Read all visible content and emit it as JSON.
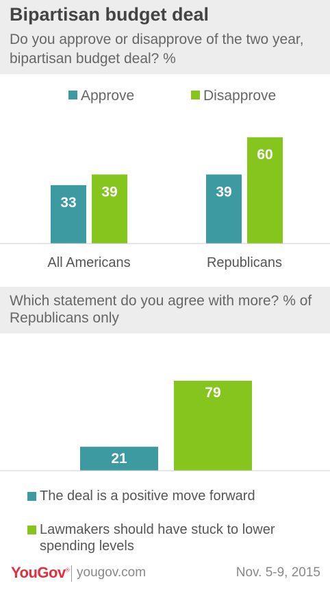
{
  "header": {
    "title": "Bipartisan budget deal",
    "subtitle": "Do you approve or disapprove of the two year, bipartisan budget deal? %"
  },
  "colors": {
    "approve": "#3d9aa0",
    "disapprove": "#86c41e",
    "header_bg": "#ededed"
  },
  "chart_data": [
    {
      "type": "bar",
      "categories": [
        "All Americans",
        "Republicans"
      ],
      "series": [
        {
          "name": "Approve",
          "values": [
            33,
            39
          ],
          "color": "#3d9aa0"
        },
        {
          "name": "Disapprove",
          "values": [
            39,
            60
          ],
          "color": "#86c41e"
        }
      ],
      "legend": [
        "Approve",
        "Disapprove"
      ],
      "legend_position": "top",
      "ylim": [
        0,
        62
      ],
      "grid": false
    },
    {
      "type": "bar",
      "title": "Which statement do you agree with more? % of Republicans only",
      "categories": [
        "The deal is a positive move forward",
        "Lawmakers should have stuck to lower spending levels"
      ],
      "values": [
        21,
        79
      ],
      "colors": [
        "#3d9aa0",
        "#86c41e"
      ],
      "ylim": [
        0,
        82
      ],
      "legend_position": "bottom",
      "grid": false
    }
  ],
  "footer": {
    "brand": "YouGov",
    "site": "yougov.com",
    "date": "Nov. 5-9, 2015"
  }
}
